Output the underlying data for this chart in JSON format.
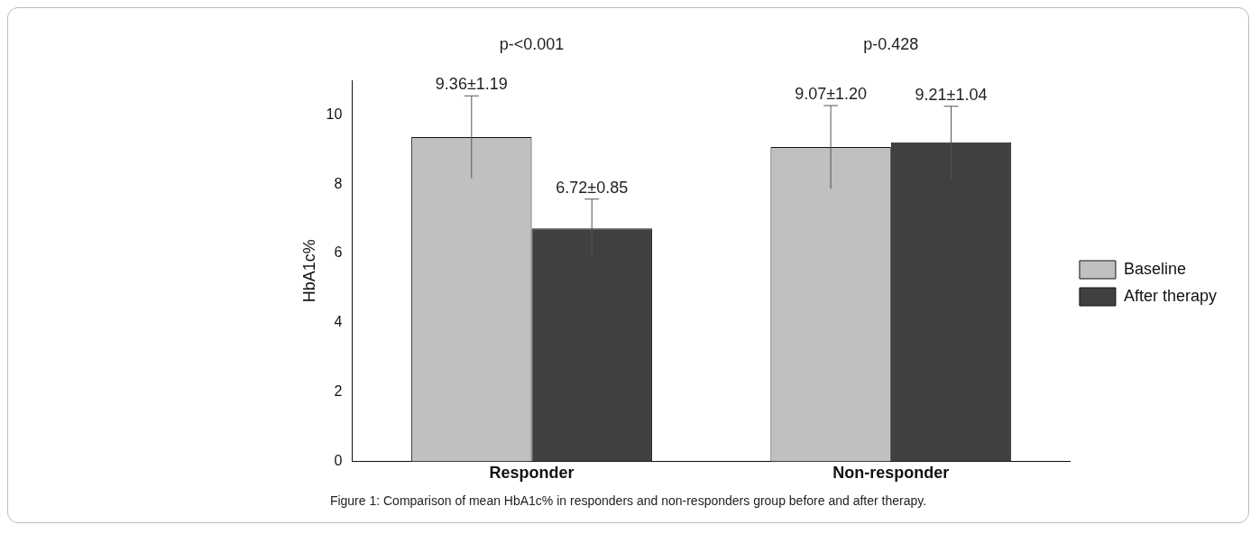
{
  "chart_data": {
    "type": "bar",
    "ylabel": "HbA1c%",
    "categories": [
      "Responder",
      "Non-responder"
    ],
    "series": [
      {
        "name": "Baseline",
        "color": "#c0c0c0",
        "values": [
          9.36,
          9.07
        ],
        "errors": [
          1.19,
          1.2
        ],
        "value_labels": [
          "9.36±1.19",
          "9.07±1.20"
        ]
      },
      {
        "name": "After therapy",
        "color": "#404040",
        "values": [
          6.72,
          9.21
        ],
        "errors": [
          0.85,
          1.04
        ],
        "value_labels": [
          "6.72±0.85",
          "9.21±1.04"
        ]
      }
    ],
    "ylim": [
      0,
      11
    ],
    "yticks": [
      0,
      2,
      4,
      6,
      8,
      10
    ],
    "grid": false,
    "legend": "right",
    "annotations": [
      "p-<0.001",
      "p-0.428",
      "Figure 1: Comparison of mean HbA1c% in responders and non-responders group before and after therapy."
    ]
  }
}
